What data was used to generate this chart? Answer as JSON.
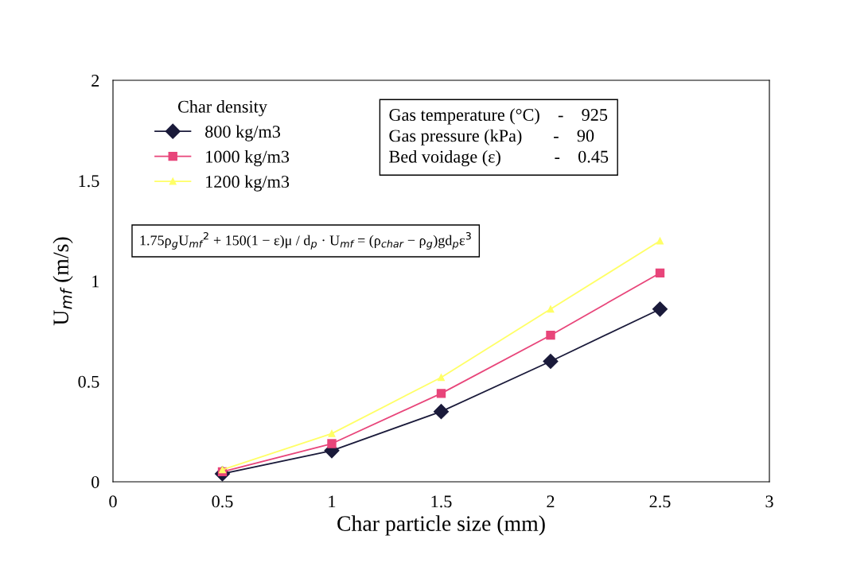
{
  "chart_data": {
    "type": "line",
    "xlabel": "Char particle size (mm)",
    "ylabel": "U$_{mf}$ (m/s)",
    "legend_title": "Char density",
    "x": [
      0.5,
      1,
      1.5,
      2,
      2.5
    ],
    "series": [
      {
        "name": "800 kg/m3",
        "color": "#1a1a3a",
        "marker": "diamond",
        "values": [
          0.04,
          0.155,
          0.35,
          0.6,
          0.86
        ]
      },
      {
        "name": "1000 kg/m3",
        "color": "#e8457a",
        "marker": "square",
        "values": [
          0.05,
          0.19,
          0.44,
          0.73,
          1.04
        ]
      },
      {
        "name": "1200 kg/m3",
        "color": "#ffff66",
        "marker": "triangle",
        "values": [
          0.06,
          0.24,
          0.52,
          0.86,
          1.2
        ]
      }
    ],
    "xlim": [
      0,
      3
    ],
    "xticks": [
      0,
      0.5,
      1,
      1.5,
      2,
      2.5,
      3
    ],
    "ylim": [
      0,
      2
    ],
    "yticks": [
      0,
      0.5,
      1,
      1.5,
      2
    ],
    "grid": false,
    "legend": "top left",
    "line_style": "solid",
    "annotations": [
      "Gas temperature (°C)    -    925\nGas pressure (kPa)       -    90\nBed voidage (ε)            -    0.45",
      "1.75ρ$_{g}$U$_{mf}$$^{2}$ + 150(1 − ε)μ / d$_{p}$ · U$_{mf}$ = (ρ$_{char}$ − ρ$_{g}$)gd$_{p}$ε$^{3}$"
    ]
  }
}
